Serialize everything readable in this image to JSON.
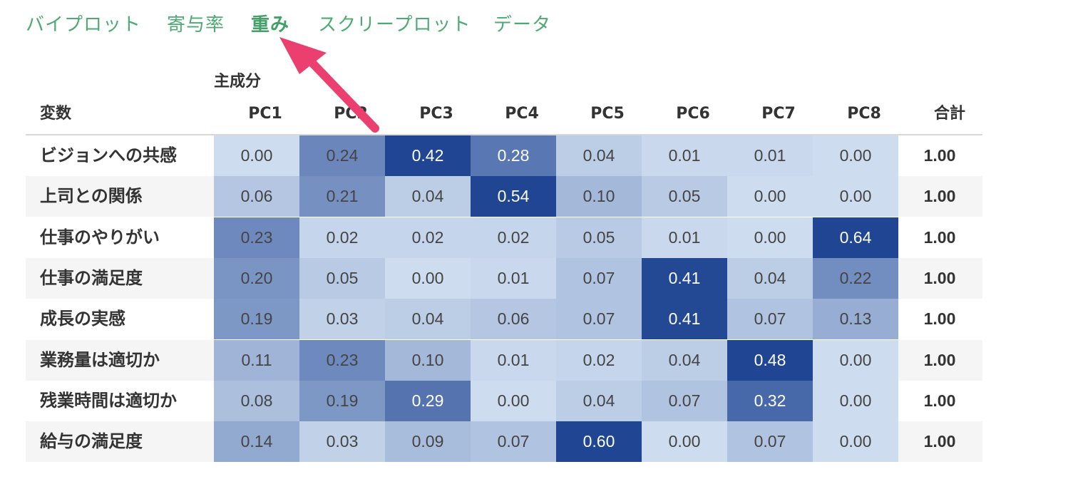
{
  "tabs": [
    {
      "label": "バイプロット",
      "active": false
    },
    {
      "label": "寄与率",
      "active": false
    },
    {
      "label": "重み",
      "active": true
    },
    {
      "label": "スクリープロット",
      "active": false
    },
    {
      "label": "データ",
      "active": false
    }
  ],
  "table": {
    "group_header": "主成分",
    "variable_header": "変数",
    "columns": [
      "PC1",
      "PC2",
      "PC3",
      "PC4",
      "PC5",
      "PC6",
      "PC7",
      "PC8"
    ],
    "total_header": "合計",
    "rows": [
      {
        "label": "ビジョンへの共感",
        "values": [
          "0.00",
          "0.24",
          "0.42",
          "0.28",
          "0.04",
          "0.01",
          "0.01",
          "0.00"
        ],
        "total": "1.00"
      },
      {
        "label": "上司との関係",
        "values": [
          "0.06",
          "0.21",
          "0.04",
          "0.54",
          "0.10",
          "0.05",
          "0.00",
          "0.00"
        ],
        "total": "1.00"
      },
      {
        "label": "仕事のやりがい",
        "values": [
          "0.23",
          "0.02",
          "0.02",
          "0.02",
          "0.05",
          "0.01",
          "0.00",
          "0.64"
        ],
        "total": "1.00"
      },
      {
        "label": "仕事の満足度",
        "values": [
          "0.20",
          "0.05",
          "0.00",
          "0.01",
          "0.07",
          "0.41",
          "0.04",
          "0.22"
        ],
        "total": "1.00"
      },
      {
        "label": "成長の実感",
        "values": [
          "0.19",
          "0.03",
          "0.04",
          "0.06",
          "0.07",
          "0.41",
          "0.07",
          "0.13"
        ],
        "total": "1.00"
      },
      {
        "label": "業務量は適切か",
        "values": [
          "0.11",
          "0.23",
          "0.10",
          "0.01",
          "0.02",
          "0.04",
          "0.48",
          "0.00"
        ],
        "total": "1.00"
      },
      {
        "label": "残業時間は適切か",
        "values": [
          "0.08",
          "0.19",
          "0.29",
          "0.00",
          "0.04",
          "0.07",
          "0.32",
          "0.00"
        ],
        "total": "1.00"
      },
      {
        "label": "給与の満足度",
        "values": [
          "0.14",
          "0.03",
          "0.09",
          "0.07",
          "0.60",
          "0.00",
          "0.07",
          "0.00"
        ],
        "total": "1.00"
      }
    ]
  },
  "colors": {
    "tab_text": "#4eaa72",
    "heat_low": "#cddcef",
    "heat_high": "#1f4593",
    "annotation_arrow": "#ea3f6f"
  }
}
